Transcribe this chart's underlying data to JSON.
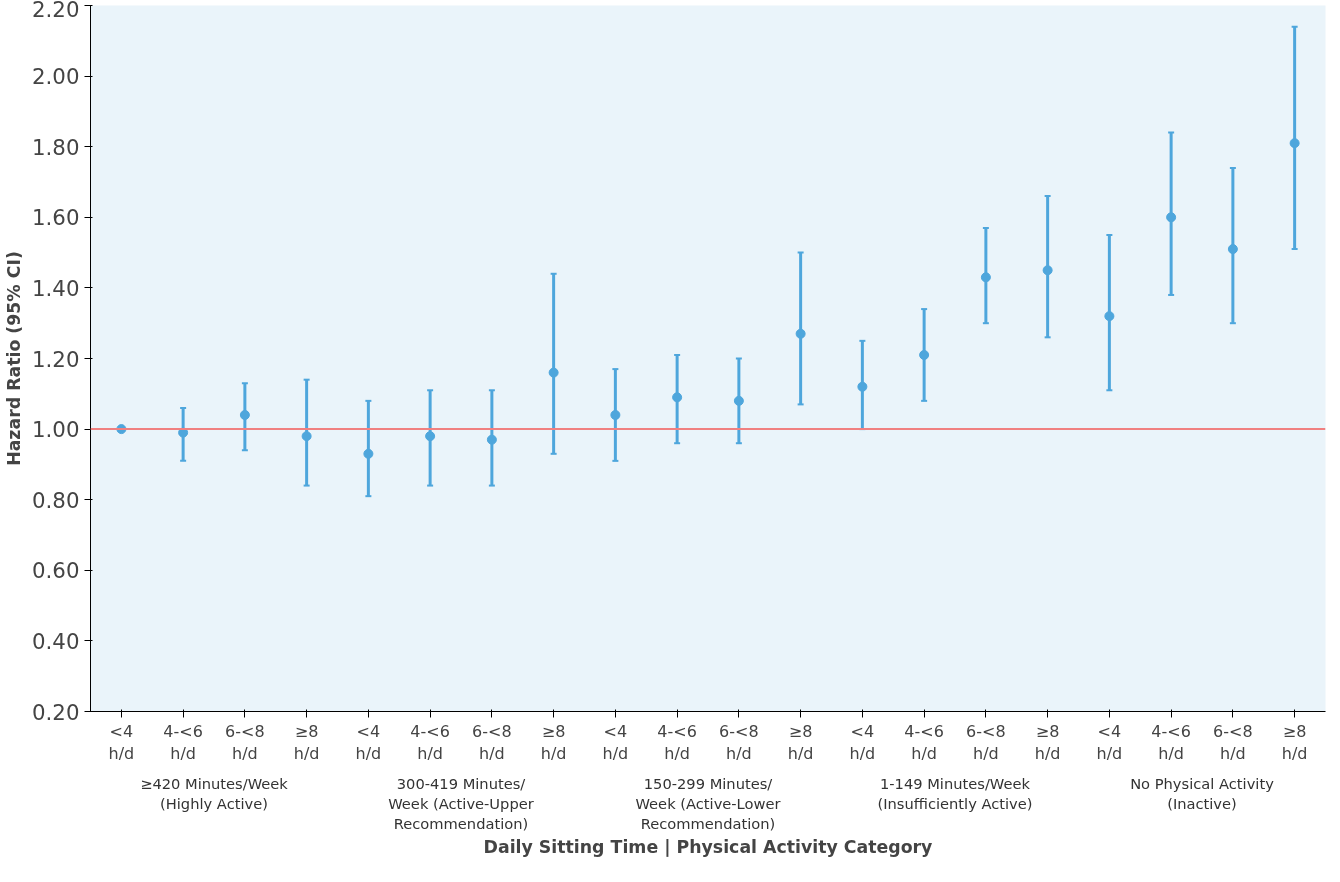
{
  "chart_data": {
    "type": "scatter",
    "ylabel": "Hazard Ratio (95% CI)",
    "xlabel": "Daily Sitting Time | Physical Activity Category",
    "categories": [
      "<4\nh/d",
      "4-<6\nh/d",
      "6-<8\nh/d",
      "≥8\nh/d",
      "<4\nh/d",
      "4-<6\nh/d",
      "6-<8\nh/d",
      "≥8\nh/d",
      "<4\nh/d",
      "4-<6\nh/d",
      "6-<8\nh/d",
      "≥8\nh/d",
      "<4\nh/d",
      "4-<6\nh/d",
      "6-<8\nh/d",
      "≥8\nh/d",
      "<4\nh/d",
      "4-<6\nh/d",
      "6-<8\nh/d",
      "≥8\nh/d"
    ],
    "series": [
      {
        "color": "#4ea6dc",
        "values": [
          1.0,
          0.99,
          1.04,
          0.98,
          0.93,
          0.98,
          0.97,
          1.16,
          1.04,
          1.09,
          1.08,
          1.27,
          1.12,
          1.21,
          1.43,
          1.45,
          1.32,
          1.6,
          1.51,
          1.81
        ],
        "errors": [
          null,
          [
            0.91,
            1.06
          ],
          [
            0.94,
            1.13
          ],
          [
            0.84,
            1.14
          ],
          [
            0.81,
            1.08
          ],
          [
            0.84,
            1.11
          ],
          [
            0.84,
            1.11
          ],
          [
            0.93,
            1.44
          ],
          [
            0.91,
            1.17
          ],
          [
            0.96,
            1.21
          ],
          [
            0.96,
            1.2
          ],
          [
            1.07,
            1.5
          ],
          [
            1.0,
            1.25
          ],
          [
            1.08,
            1.34
          ],
          [
            1.3,
            1.57
          ],
          [
            1.26,
            1.66
          ],
          [
            1.11,
            1.55
          ],
          [
            1.38,
            1.84
          ],
          [
            1.3,
            1.74
          ],
          [
            1.51,
            2.14
          ]
        ]
      }
    ],
    "marker": "circle",
    "ylim": [
      0.2,
      2.2
    ],
    "yticks": [
      {
        "value": 0.2,
        "label": "0.20"
      },
      {
        "value": 0.4,
        "label": "0.40"
      },
      {
        "value": 0.6,
        "label": "0.60"
      },
      {
        "value": 0.8,
        "label": "0.80"
      },
      {
        "value": 1.0,
        "label": "1.00"
      },
      {
        "value": 1.2,
        "label": "1.20"
      },
      {
        "value": 1.4,
        "label": "1.40"
      },
      {
        "value": 1.6,
        "label": "1.60"
      },
      {
        "value": 1.8,
        "label": "1.80"
      },
      {
        "value": 2.0,
        "label": "2.00"
      },
      {
        "value": 2.2,
        "label": "2.20"
      }
    ],
    "ref_lines": [
      {
        "axis": "y",
        "value": 1.0,
        "color": "#f08080"
      }
    ],
    "annotations": [
      "≥420 Minutes/Week\n(Highly Active)",
      "300-419 Minutes/\nWeek (Active-Upper\nRecommendation)",
      "150-299 Minutes/\nWeek (Active-Lower\nRecommendation)",
      "1-149 Minutes/Week\n(Insufficiently Active)",
      "No Physical Activity\n(Inactive)"
    ]
  }
}
